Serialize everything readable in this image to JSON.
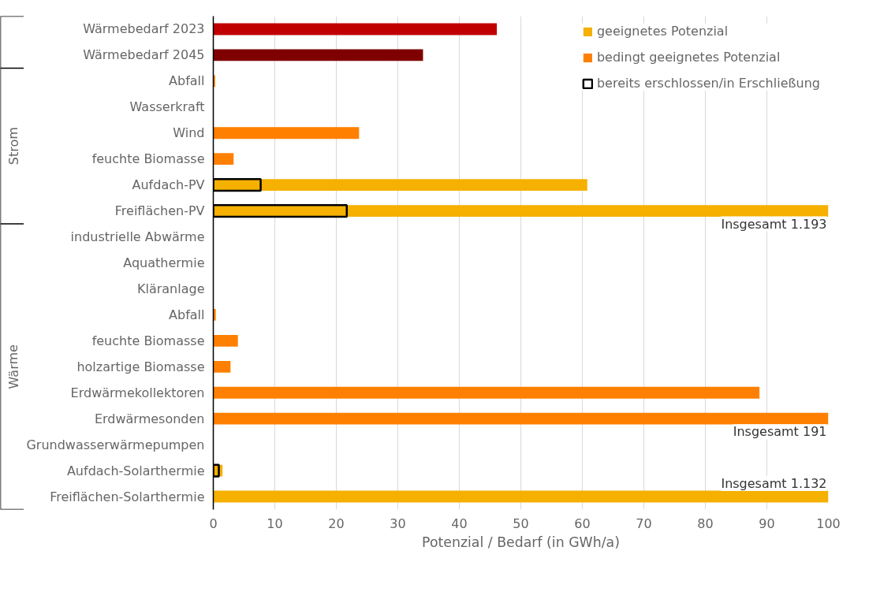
{
  "chart_data": {
    "type": "bar",
    "orientation": "horizontal",
    "xlabel": "Potenzial / Bedarf (in GWh/a)",
    "categories": [
      "Wärmebedarf 2023",
      "Wärmebedarf 2045",
      "Abfall",
      "Wasserkraft",
      "Wind",
      "feuchte Biomasse",
      "Aufdach-PV",
      "Freiflächen-PV",
      "industrielle Abwärme",
      "Aquathermie",
      "Kläranlage",
      "Abfall",
      "feuchte Biomasse",
      "holzartige Biomasse",
      "Erdwärmekollektoren",
      "Erdwärmesonden",
      "Grundwasserwärmepumpen",
      "Aufdach-Solarthermie",
      "Freiflächen-Solarthermie"
    ],
    "series": [
      {
        "colors": [
          "#c00000",
          "#7f0000",
          null,
          null,
          null,
          null,
          null,
          null,
          null,
          null,
          null,
          null,
          null,
          null,
          null,
          null,
          null,
          null,
          null
        ],
        "values": [
          46.1,
          34.1,
          null,
          null,
          null,
          null,
          null,
          null,
          null,
          null,
          null,
          null,
          null,
          null,
          null,
          null,
          null,
          null,
          null
        ]
      },
      {
        "name": "geeignetes Potenzial",
        "color": "#f5b000",
        "values": [
          null,
          null,
          null,
          null,
          null,
          null,
          60.8,
          100,
          null,
          null,
          null,
          null,
          null,
          null,
          null,
          null,
          null,
          1.5,
          100
        ]
      },
      {
        "name": "bedingt geeignetes Potenzial",
        "color": "#ff8000",
        "values": [
          null,
          null,
          0.3,
          null,
          23.7,
          3.3,
          null,
          null,
          null,
          null,
          null,
          0.4,
          4.0,
          2.8,
          88.8,
          100,
          null,
          null,
          null
        ]
      },
      {
        "name": "bereits erschlossen/in Erschließung",
        "color": "#000000",
        "line_style": "solid",
        "values": [
          null,
          null,
          null,
          null,
          null,
          null,
          7.7,
          21.7,
          null,
          null,
          null,
          null,
          null,
          null,
          null,
          null,
          null,
          0.9,
          null
        ]
      }
    ],
    "xlim": [
      0,
      100
    ],
    "xticks": [
      0,
      10,
      20,
      30,
      40,
      50,
      60,
      70,
      80,
      90,
      100
    ],
    "grid": "x",
    "legend": "top right",
    "annotations": [
      "Strom",
      "Wärme",
      "Insgesamt 1.193",
      "Insgesamt 191",
      "Insgesamt 1.132"
    ]
  }
}
